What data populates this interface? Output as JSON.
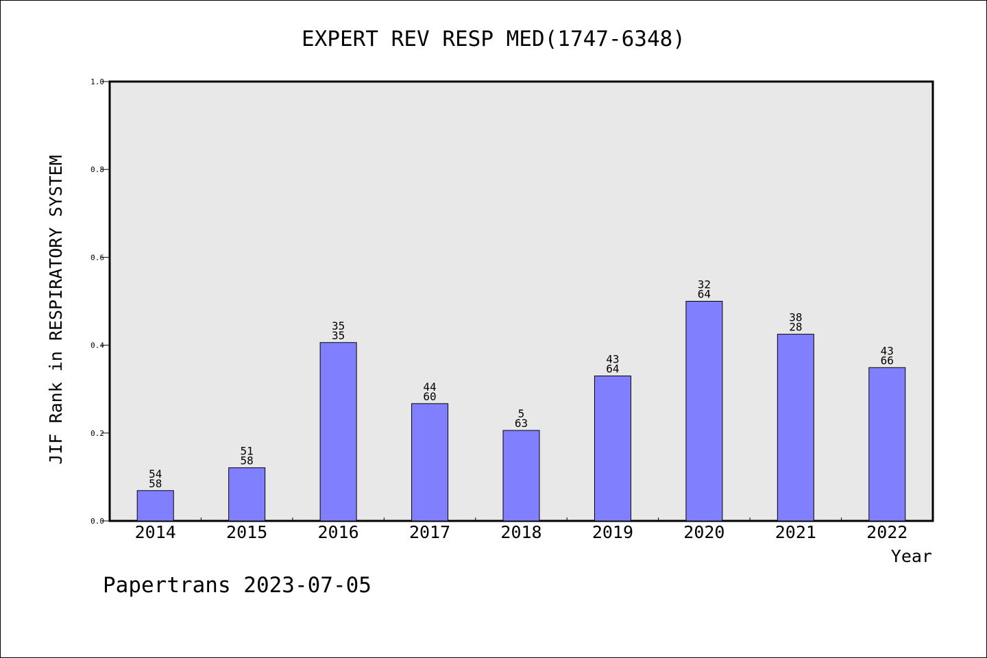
{
  "chart_data": {
    "type": "bar",
    "title": "EXPERT REV RESP MED(1747-6348)",
    "xlabel": "Year",
    "ylabel": "JIF Rank in RESPIRATORY SYSTEM",
    "ylim": [
      0,
      1.0
    ],
    "yticks": [
      "0.0",
      "0.2",
      "0.4",
      "0.6",
      "0.8",
      "1.0"
    ],
    "categories": [
      "2014",
      "2015",
      "2016",
      "2017",
      "2018",
      "2019",
      "2020",
      "2021",
      "2022"
    ],
    "values": [
      0.069,
      0.121,
      0.406,
      0.267,
      0.206,
      0.33,
      0.5,
      0.425,
      0.349
    ],
    "labels_top": [
      "54",
      "51",
      "35",
      "44",
      "5",
      "43",
      "32",
      "38",
      "43"
    ],
    "labels_bottom": [
      "58",
      "58",
      "35",
      "60",
      "63",
      "64",
      "64",
      "28",
      "66"
    ],
    "bar_color": "#8080ff",
    "plot_background": "#e8e8e8",
    "grid": false
  },
  "footer": "Papertrans 2023-07-05"
}
